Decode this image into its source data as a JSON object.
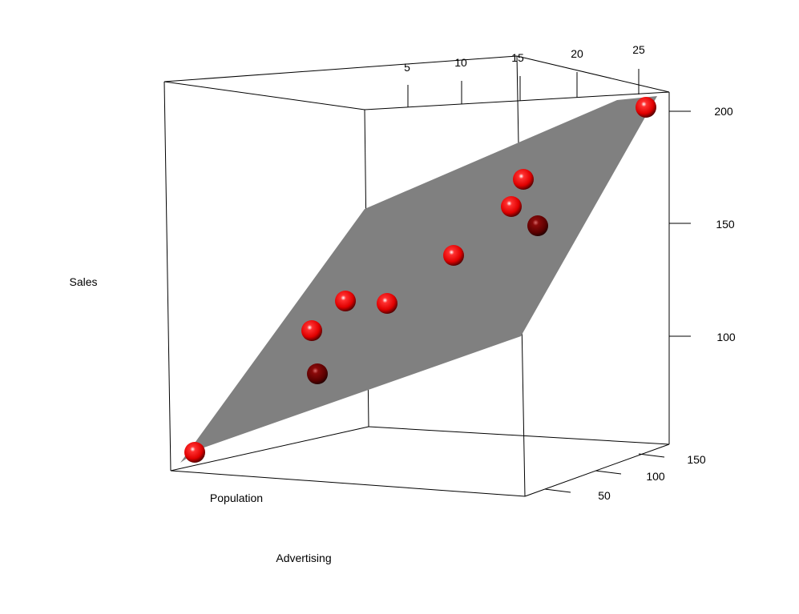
{
  "chart_data": {
    "type": "scatter",
    "subtype": "3d-scatter-with-regression-plane",
    "title": "",
    "axes": {
      "sales": {
        "label": "Sales",
        "ticks": [
          100,
          150,
          200
        ]
      },
      "advertising": {
        "label": "Advertising",
        "ticks": [
          5,
          10,
          15,
          20,
          25
        ]
      },
      "population": {
        "label": "Population",
        "ticks": [
          50,
          100,
          150
        ]
      }
    },
    "regression_plane": {
      "color": "#808080"
    },
    "point_colors": {
      "front": "#ff1a1a",
      "back": "#6e0000"
    },
    "points": [
      {
        "sales_approx": 56,
        "depth": "front"
      },
      {
        "sales_approx": 106,
        "depth": "back"
      },
      {
        "sales_approx": 117,
        "depth": "front"
      },
      {
        "sales_approx": 130,
        "depth": "front"
      },
      {
        "sales_approx": 128,
        "depth": "front"
      },
      {
        "sales_approx": 148,
        "depth": "front"
      },
      {
        "sales_approx": 166,
        "depth": "front"
      },
      {
        "sales_approx": 171,
        "depth": "back"
      },
      {
        "sales_approx": 178,
        "depth": "front"
      },
      {
        "sales_approx": 200,
        "depth": "front"
      }
    ]
  }
}
